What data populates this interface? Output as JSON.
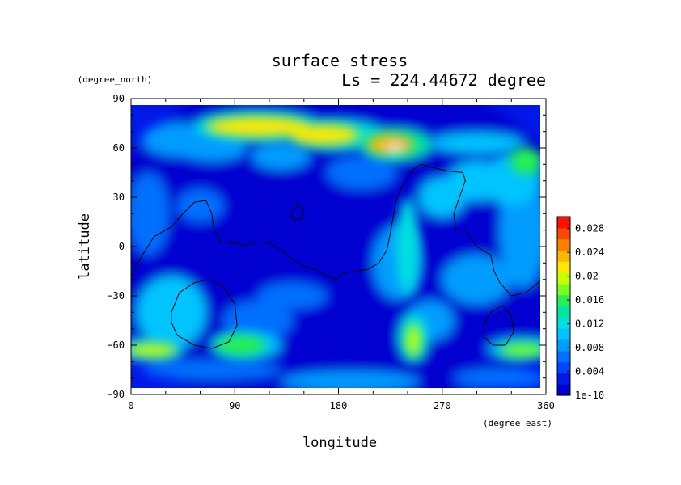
{
  "chart_data": {
    "type": "heatmap",
    "title": "surface stress",
    "subtitle": "Ls = 224.44672 degree",
    "xlabel": "longitude",
    "ylabel": "latitude",
    "x_unit": "(degree_east)",
    "y_unit": "(degree_north)",
    "xlim": [
      0,
      360
    ],
    "ylim": [
      -90,
      90
    ],
    "x_ticks": [
      "0",
      "90",
      "180",
      "270",
      "360"
    ],
    "y_ticks": [
      "90",
      "60",
      "30",
      "0",
      "−30",
      "−60",
      "−90"
    ],
    "x_tick_values": [
      0,
      90,
      180,
      270,
      360
    ],
    "y_tick_values": [
      90,
      60,
      30,
      0,
      -30,
      -60,
      -90
    ],
    "colorbar": {
      "min": 1e-10,
      "max": 0.03,
      "labels": [
        "0.028",
        "0.024",
        "0.02",
        "0.016",
        "0.012",
        "0.008",
        "0.004",
        "1e-10"
      ],
      "values": [
        0.028,
        0.024,
        0.02,
        0.016,
        0.012,
        0.008,
        0.004,
        0.0
      ],
      "colors": [
        "#0000d0",
        "#0018e8",
        "#0046ff",
        "#0070ff",
        "#009cff",
        "#00c4ff",
        "#00e0e0",
        "#00e8a0",
        "#28f050",
        "#78ff20",
        "#c8ff00",
        "#ffe800",
        "#ffb800",
        "#ff8000",
        "#ff4800",
        "#ff1000"
      ]
    },
    "hotspots": [
      {
        "lon": 110,
        "lat": 73,
        "w": 45,
        "h": 6,
        "value": 0.021
      },
      {
        "lon": 168,
        "lat": 68,
        "w": 30,
        "h": 6,
        "value": 0.022
      },
      {
        "lon": 225,
        "lat": 62,
        "w": 20,
        "h": 6,
        "value": 0.024
      },
      {
        "lon": 229,
        "lat": 59,
        "w": 5,
        "h": 2,
        "value": 0.03
      },
      {
        "lon": 343,
        "lat": 52,
        "w": 14,
        "h": 8,
        "value": 0.016
      },
      {
        "lon": 18,
        "lat": -63,
        "w": 22,
        "h": 4,
        "value": 0.02
      },
      {
        "lon": 95,
        "lat": -60,
        "w": 22,
        "h": 6,
        "value": 0.016
      },
      {
        "lon": 245,
        "lat": -57,
        "w": 6,
        "h": 10,
        "value": 0.02
      },
      {
        "lon": 340,
        "lat": -63,
        "w": 20,
        "h": 4,
        "value": 0.018
      },
      {
        "lon": 240,
        "lat": 0,
        "w": 10,
        "h": 30,
        "value": 0.012
      }
    ]
  }
}
